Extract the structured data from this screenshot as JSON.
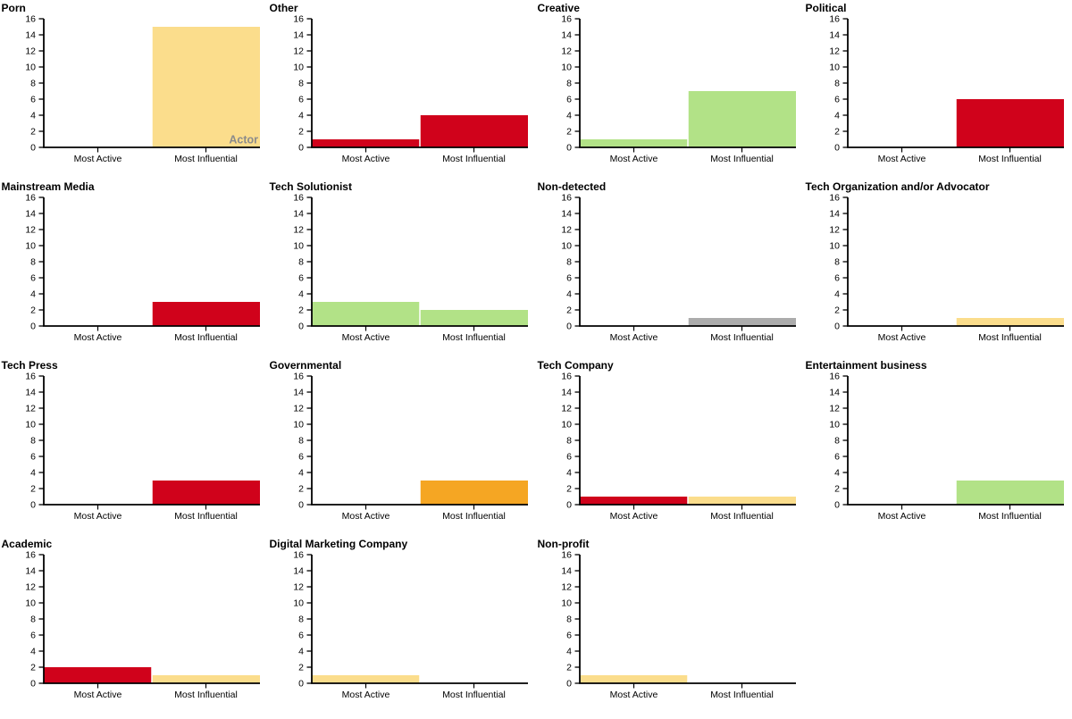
{
  "figure": {
    "categories": [
      "Most Active",
      "Most Influential"
    ],
    "ylim": [
      0,
      16
    ],
    "ytick_step": 2,
    "grid": false,
    "legend": "none",
    "palette": {
      "red": "#D0021B",
      "orange": "#F5A623",
      "yellow": "#FBDD8C",
      "green": "#B2E287",
      "gray": "#ACACAC"
    },
    "axis_color": "#000000",
    "annotation_color": "#8B8B8B"
  },
  "chart_data": [
    {
      "type": "bar",
      "title": "Porn",
      "categories": [
        "Most Active",
        "Most Influential"
      ],
      "values": [
        0,
        15
      ],
      "bar_colors": [
        "yellow",
        "yellow"
      ],
      "annotation": "Actor",
      "ylim": [
        0,
        16
      ]
    },
    {
      "type": "bar",
      "title": "Other",
      "categories": [
        "Most Active",
        "Most Influential"
      ],
      "values": [
        1,
        4
      ],
      "bar_colors": [
        "red",
        "red"
      ],
      "annotation": null,
      "ylim": [
        0,
        16
      ]
    },
    {
      "type": "bar",
      "title": "Creative",
      "categories": [
        "Most Active",
        "Most Influential"
      ],
      "values": [
        1,
        7
      ],
      "bar_colors": [
        "green",
        "green"
      ],
      "annotation": null,
      "ylim": [
        0,
        16
      ]
    },
    {
      "type": "bar",
      "title": "Political",
      "categories": [
        "Most Active",
        "Most Influential"
      ],
      "values": [
        0,
        6
      ],
      "bar_colors": [
        "red",
        "red"
      ],
      "annotation": null,
      "ylim": [
        0,
        16
      ]
    },
    {
      "type": "bar",
      "title": "Mainstream Media",
      "categories": [
        "Most Active",
        "Most Influential"
      ],
      "values": [
        0,
        3
      ],
      "bar_colors": [
        "red",
        "red"
      ],
      "annotation": null,
      "ylim": [
        0,
        16
      ]
    },
    {
      "type": "bar",
      "title": "Tech Solutionist",
      "categories": [
        "Most Active",
        "Most Influential"
      ],
      "values": [
        3,
        2
      ],
      "bar_colors": [
        "green",
        "green"
      ],
      "annotation": null,
      "ylim": [
        0,
        16
      ]
    },
    {
      "type": "bar",
      "title": "Non-detected",
      "categories": [
        "Most Active",
        "Most Influential"
      ],
      "values": [
        0,
        1
      ],
      "bar_colors": [
        "gray",
        "gray"
      ],
      "annotation": null,
      "ylim": [
        0,
        16
      ]
    },
    {
      "type": "bar",
      "title": "Tech Organization and/or Advocator",
      "categories": [
        "Most Active",
        "Most Influential"
      ],
      "values": [
        0,
        1
      ],
      "bar_colors": [
        "yellow",
        "yellow"
      ],
      "annotation": null,
      "ylim": [
        0,
        16
      ]
    },
    {
      "type": "bar",
      "title": "Tech Press",
      "categories": [
        "Most Active",
        "Most Influential"
      ],
      "values": [
        0,
        3
      ],
      "bar_colors": [
        "red",
        "red"
      ],
      "annotation": null,
      "ylim": [
        0,
        16
      ]
    },
    {
      "type": "bar",
      "title": "Governmental",
      "categories": [
        "Most Active",
        "Most Influential"
      ],
      "values": [
        0,
        3
      ],
      "bar_colors": [
        "orange",
        "orange"
      ],
      "annotation": null,
      "ylim": [
        0,
        16
      ]
    },
    {
      "type": "bar",
      "title": "Tech Company",
      "categories": [
        "Most Active",
        "Most Influential"
      ],
      "values": [
        1,
        1
      ],
      "bar_colors": [
        "red",
        "yellow"
      ],
      "annotation": null,
      "ylim": [
        0,
        16
      ]
    },
    {
      "type": "bar",
      "title": "Entertainment business",
      "categories": [
        "Most Active",
        "Most Influential"
      ],
      "values": [
        0,
        3
      ],
      "bar_colors": [
        "green",
        "green"
      ],
      "annotation": null,
      "ylim": [
        0,
        16
      ]
    },
    {
      "type": "bar",
      "title": "Academic",
      "categories": [
        "Most Active",
        "Most Influential"
      ],
      "values": [
        2,
        1
      ],
      "bar_colors": [
        "red",
        "yellow"
      ],
      "annotation": null,
      "ylim": [
        0,
        16
      ]
    },
    {
      "type": "bar",
      "title": "Digital Marketing Company",
      "categories": [
        "Most Active",
        "Most Influential"
      ],
      "values": [
        1,
        0
      ],
      "bar_colors": [
        "yellow",
        "yellow"
      ],
      "annotation": null,
      "ylim": [
        0,
        16
      ]
    },
    {
      "type": "bar",
      "title": "Non-profit",
      "categories": [
        "Most Active",
        "Most Influential"
      ],
      "values": [
        1,
        0
      ],
      "bar_colors": [
        "yellow",
        "yellow"
      ],
      "annotation": null,
      "ylim": [
        0,
        16
      ]
    }
  ]
}
